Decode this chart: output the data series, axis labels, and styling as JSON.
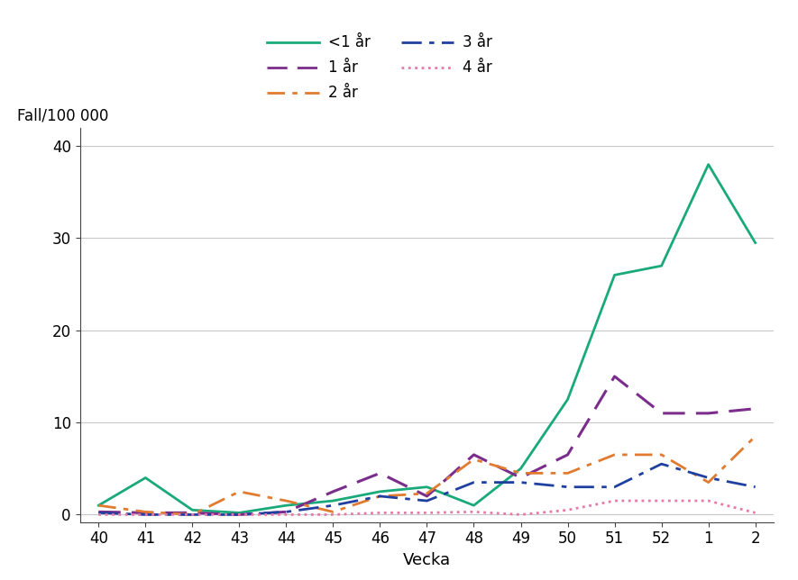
{
  "weeks": [
    40,
    41,
    42,
    43,
    44,
    45,
    46,
    47,
    48,
    49,
    50,
    51,
    52,
    1,
    2
  ],
  "series_order": [
    "<1 år",
    "1 år",
    "2 år",
    "3 år",
    "4 år"
  ],
  "series": {
    "<1 år": {
      "values": [
        1.0,
        4.0,
        0.5,
        0.2,
        1.0,
        1.5,
        2.5,
        3.0,
        1.0,
        5.0,
        12.5,
        26.0,
        27.0,
        38.0,
        29.5
      ],
      "color": "#1aaa7a",
      "linestyle": "solid",
      "linewidth": 2.0,
      "dashes": null
    },
    "1 år": {
      "values": [
        0.3,
        0.2,
        0.2,
        0.0,
        0.3,
        2.5,
        4.5,
        2.0,
        6.5,
        4.0,
        6.5,
        15.0,
        11.0,
        11.0,
        11.5
      ],
      "color": "#7b2d8b",
      "linestyle": "dashed",
      "linewidth": 2.2,
      "dashes": [
        8,
        4
      ]
    },
    "2 år": {
      "values": [
        1.0,
        0.3,
        0.0,
        2.5,
        1.5,
        0.3,
        2.0,
        2.3,
        6.0,
        4.5,
        4.5,
        6.5,
        6.5,
        3.5,
        8.5
      ],
      "color": "#e07b30",
      "linestyle": "dashdot",
      "linewidth": 2.0,
      "dashes": [
        7,
        3,
        2,
        3
      ]
    },
    "3 år": {
      "values": [
        0.2,
        0.0,
        0.0,
        0.0,
        0.3,
        1.0,
        2.0,
        1.5,
        3.5,
        3.5,
        3.0,
        3.0,
        5.5,
        4.0,
        3.0
      ],
      "color": "#2040a0",
      "linestyle": "dashed",
      "linewidth": 2.0,
      "dashes": [
        8,
        3,
        2,
        3
      ]
    },
    "4 år": {
      "values": [
        0.0,
        0.0,
        0.0,
        0.0,
        0.0,
        0.0,
        0.2,
        0.2,
        0.3,
        0.0,
        0.5,
        1.5,
        1.5,
        1.5,
        0.2
      ],
      "color": "#e878a8",
      "linestyle": "dotted",
      "linewidth": 2.0,
      "dashes": null
    }
  },
  "xlabel": "Vecka",
  "ylabel": "Fall/100 000",
  "ylim": [
    -0.8,
    42
  ],
  "yticks": [
    0,
    10,
    20,
    30,
    40
  ],
  "background_color": "#ffffff",
  "grid_color": "#c8c8c8",
  "legend_order_col1": [
    "<1 år",
    "2 år",
    "4 år"
  ],
  "legend_order_col2": [
    "1 år",
    "3 år"
  ]
}
